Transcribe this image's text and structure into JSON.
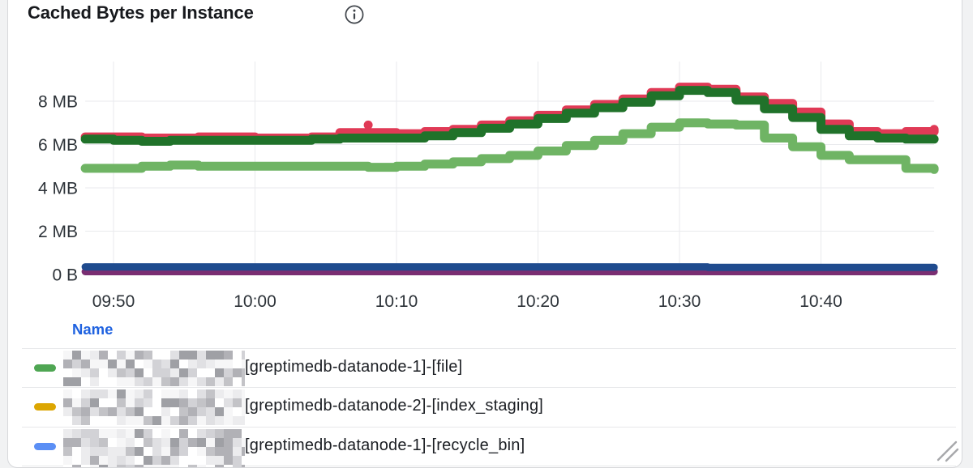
{
  "panel": {
    "title": "Cached Bytes per Instance",
    "info_icon": "info-icon"
  },
  "chart_data": {
    "type": "line",
    "style": "stepped-points",
    "title": "Cached Bytes per Instance",
    "xlabel": "",
    "ylabel": "",
    "y_unit": "bytes",
    "grid": true,
    "legend_position": "bottom-table",
    "ylim_mb": [
      0,
      9.8
    ],
    "x_range": [
      "09:48",
      "10:48"
    ],
    "x_step_minutes": 2,
    "y_ticks": [
      {
        "label": "0 B",
        "mb": 0
      },
      {
        "label": "2 MB",
        "mb": 2
      },
      {
        "label": "4 MB",
        "mb": 4
      },
      {
        "label": "6 MB",
        "mb": 6
      },
      {
        "label": "8 MB",
        "mb": 8
      }
    ],
    "x_ticks": [
      {
        "label": "09:50"
      },
      {
        "label": "10:00"
      },
      {
        "label": "10:10"
      },
      {
        "label": "10:20"
      },
      {
        "label": "10:30"
      },
      {
        "label": "10:40"
      }
    ],
    "x": [
      "09:48",
      "09:50",
      "09:52",
      "09:54",
      "09:56",
      "09:58",
      "10:00",
      "10:02",
      "10:04",
      "10:06",
      "10:08",
      "10:10",
      "10:12",
      "10:14",
      "10:16",
      "10:18",
      "10:20",
      "10:22",
      "10:24",
      "10:26",
      "10:28",
      "10:30",
      "10:32",
      "10:34",
      "10:36",
      "10:38",
      "10:40",
      "10:42",
      "10:44",
      "10:46",
      "10:48"
    ],
    "series": [
      {
        "name": "purple-series",
        "color": "#7A2E72",
        "width": 9,
        "values": [
          0.13,
          0.13,
          0.13,
          0.13,
          0.13,
          0.13,
          0.13,
          0.13,
          0.13,
          0.13,
          0.13,
          0.13,
          0.13,
          0.13,
          0.13,
          0.13,
          0.13,
          0.13,
          0.13,
          0.13,
          0.13,
          0.13,
          0.13,
          0.13,
          0.13,
          0.13,
          0.13,
          0.13,
          0.13,
          0.13,
          0.13
        ]
      },
      {
        "name": "navy-series",
        "color": "#1F4B8E",
        "width": 9,
        "values": [
          0.35,
          0.35,
          0.35,
          0.35,
          0.35,
          0.35,
          0.35,
          0.35,
          0.35,
          0.35,
          0.35,
          0.35,
          0.35,
          0.35,
          0.35,
          0.35,
          0.35,
          0.35,
          0.35,
          0.35,
          0.35,
          0.35,
          0.33,
          0.33,
          0.33,
          0.33,
          0.33,
          0.33,
          0.33,
          0.33,
          0.33
        ]
      },
      {
        "name": "red-series",
        "color": "#E03A56",
        "width": 11,
        "values": [
          6.35,
          6.35,
          6.3,
          6.3,
          6.35,
          6.35,
          6.3,
          6.3,
          6.35,
          6.55,
          6.55,
          6.5,
          6.6,
          6.7,
          6.9,
          7.1,
          7.35,
          7.6,
          7.85,
          8.1,
          8.4,
          8.65,
          8.55,
          8.2,
          7.9,
          7.5,
          6.95,
          6.6,
          6.5,
          6.6,
          6.7
        ]
      },
      {
        "name": "dark-green-series",
        "color": "#20722A",
        "width": 11,
        "values": [
          6.25,
          6.2,
          6.15,
          6.2,
          6.2,
          6.2,
          6.2,
          6.2,
          6.25,
          6.3,
          6.3,
          6.3,
          6.4,
          6.55,
          6.75,
          6.95,
          7.2,
          7.45,
          7.7,
          7.95,
          8.25,
          8.5,
          8.4,
          8.05,
          7.65,
          7.25,
          6.7,
          6.4,
          6.3,
          6.25,
          6.25
        ]
      },
      {
        "name": "light-green-series",
        "color": "#6FB464",
        "width": 11,
        "values": [
          4.9,
          4.9,
          5.0,
          5.05,
          5.0,
          5.0,
          5.0,
          5.0,
          5.0,
          5.0,
          4.95,
          5.0,
          5.1,
          5.2,
          5.35,
          5.5,
          5.7,
          5.95,
          6.2,
          6.5,
          6.8,
          7.0,
          6.95,
          6.9,
          6.3,
          5.9,
          5.5,
          5.3,
          5.3,
          4.9,
          4.85
        ]
      }
    ],
    "outlier": {
      "series": "red-series",
      "time": "10:08",
      "value_mb": 6.9
    }
  },
  "legend": {
    "header": "Name",
    "rows": [
      {
        "marker_color": "#4FA653",
        "name_prefix_redacted": true,
        "label": "[greptimedb-datanode-1]-[file]"
      },
      {
        "marker_color": "#DCA602",
        "name_prefix_redacted": true,
        "label": "[greptimedb-datanode-2]-[index_staging]"
      },
      {
        "marker_color": "#5B8FF5",
        "name_prefix_redacted": true,
        "label": "[greptimedb-datanode-1]-[recycle_bin]"
      }
    ]
  }
}
